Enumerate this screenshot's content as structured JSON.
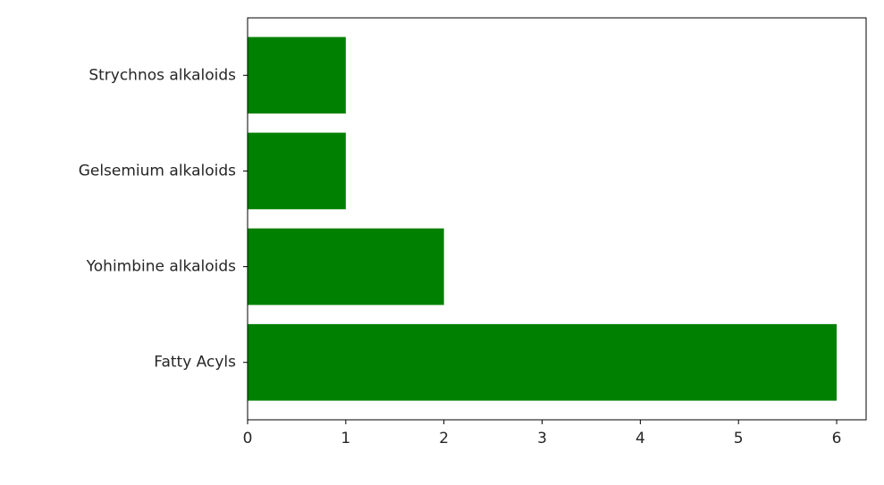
{
  "chart_data": {
    "type": "bar",
    "orientation": "horizontal",
    "categories": [
      "Fatty Acyls",
      "Yohimbine alkaloids",
      "Gelsemium alkaloids",
      "Strychnos alkaloids"
    ],
    "values": [
      6,
      2,
      1,
      1
    ],
    "xlim": [
      0,
      6.3
    ],
    "xticks": [
      "0",
      "1",
      "2",
      "3",
      "4",
      "5",
      "6"
    ],
    "xlabel": "",
    "ylabel": "",
    "title": "",
    "grid": false,
    "colors": {
      "bar": "#008000",
      "axis": "#000000",
      "text": "#262626"
    }
  }
}
